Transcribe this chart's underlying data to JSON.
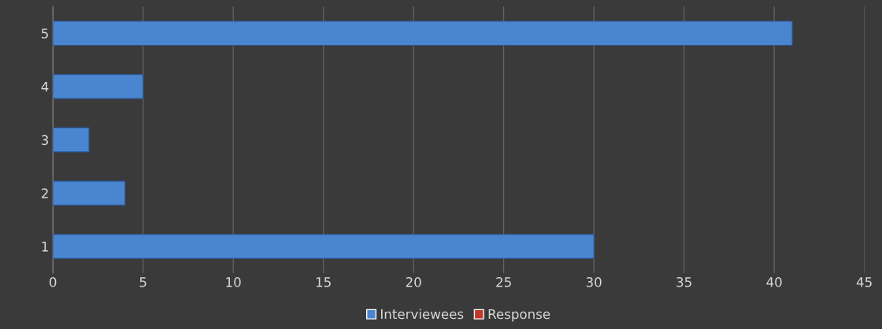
{
  "chart_data": {
    "type": "bar",
    "orientation": "horizontal",
    "categories": [
      "5",
      "4",
      "3",
      "2",
      "1"
    ],
    "series": [
      {
        "name": "Interviewees",
        "color": "#4a86d0",
        "values": [
          41,
          5,
          2,
          4,
          30
        ]
      },
      {
        "name": "Response",
        "color": "#c0392b",
        "values": [
          null,
          null,
          null,
          null,
          null
        ]
      }
    ],
    "xlim": [
      0,
      45
    ],
    "xticks": [
      0,
      5,
      10,
      15,
      20,
      25,
      30,
      35,
      40,
      45
    ],
    "grid": "x",
    "legend": "bottom"
  }
}
